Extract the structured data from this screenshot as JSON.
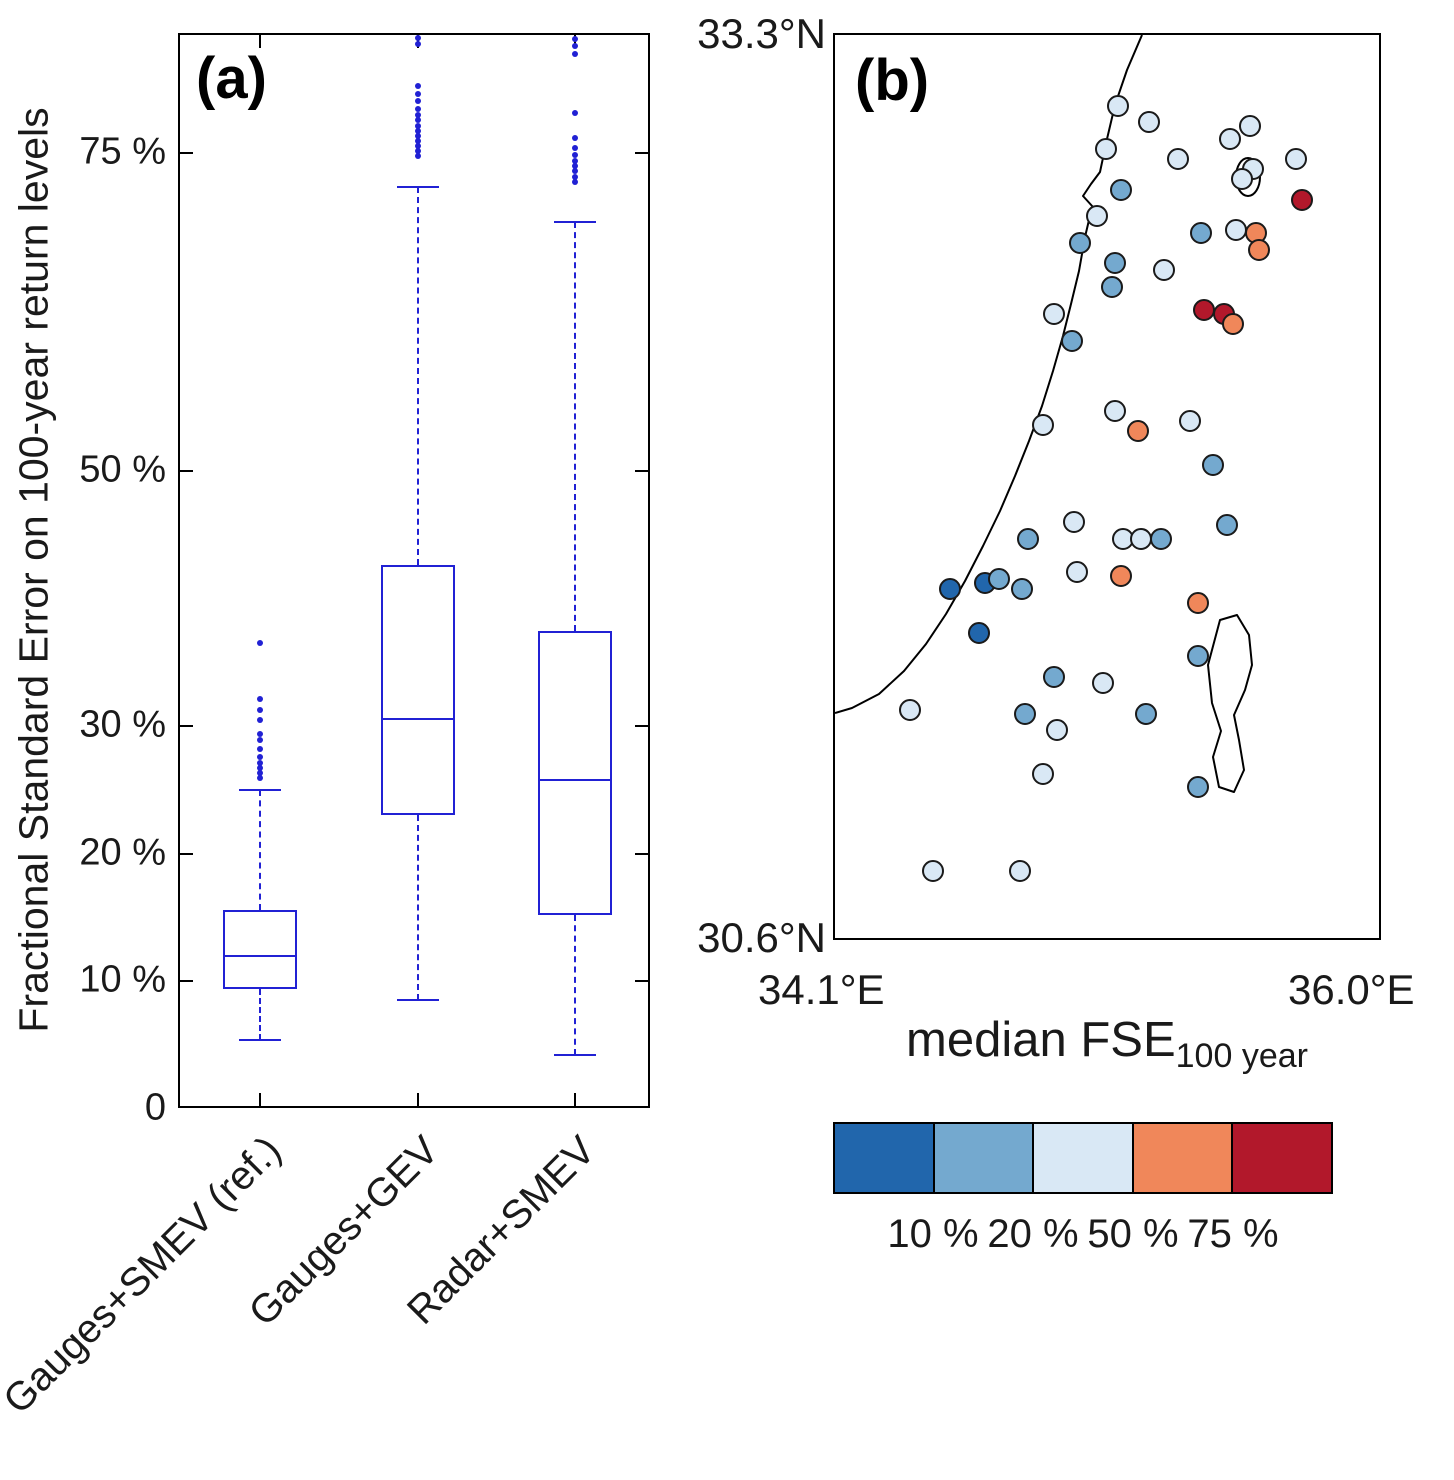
{
  "chart_data": [
    {
      "type": "boxplot",
      "panel_label": "(a)",
      "ylabel": "Fractional Standard Error on 100-year return levels",
      "ylim": [
        0,
        84.3
      ],
      "yticks": [
        0,
        10,
        20,
        30,
        50,
        75
      ],
      "ytick_labels": [
        "0",
        "10 %",
        "20 %",
        "30 %",
        "50 %",
        "75 %"
      ],
      "grid": false,
      "box_color": "#2121d4",
      "categories": [
        "Gauges+SMEV (ref.)",
        "Gauges+GEV",
        "Radar+SMEV"
      ],
      "boxes": [
        {
          "label": "Gauges+SMEV (ref.)",
          "whisker_low": 5.5,
          "q1": 9.5,
          "median": 12.1,
          "q3": 15.7,
          "whisker_high": 25.1,
          "outliers": [
            26,
            26.4,
            26.8,
            27.2,
            27.7,
            28.3,
            29,
            29.5,
            30.6,
            31.4,
            32.2,
            36.6
          ]
        },
        {
          "label": "Gauges+GEV",
          "whisker_low": 8.6,
          "q1": 23.1,
          "median": 30.7,
          "q3": 42.7,
          "whisker_high": 72.4,
          "outliers": [
            74.8,
            75.2,
            75.6,
            76,
            76.4,
            76.8,
            77.2,
            77.6,
            78,
            78.5,
            79.1,
            79.7,
            80.3,
            83.6,
            84.1
          ]
        },
        {
          "label": "Radar+SMEV",
          "whisker_low": 4.3,
          "q1": 15.3,
          "median": 25.9,
          "q3": 37.6,
          "whisker_high": 69.6,
          "outliers": [
            72.8,
            73.2,
            73.6,
            74,
            74.4,
            74.9,
            75.4,
            76.2,
            78.2,
            82.8,
            83.4,
            84
          ]
        }
      ]
    },
    {
      "type": "scatter-map",
      "panel_label": "(b)",
      "lon_range": [
        34.1,
        36.0
      ],
      "lat_range": [
        30.6,
        33.3
      ],
      "corner_labels": {
        "top_left": "33.3°N",
        "bottom_left": "30.6°N",
        "left": "34.1°E",
        "right": "36.0°E"
      },
      "colorbar": {
        "title": "median FSE",
        "title_subscript": "100 year",
        "colors": [
          "#2166ac",
          "#74a9cf",
          "#d9e8f5",
          "#f0875a",
          "#b2182b"
        ],
        "boundary_labels": [
          "10 %",
          "20 %",
          "50 %",
          "75 %"
        ]
      },
      "points": [
        {
          "lon": 35.08,
          "lat": 33.09,
          "bin": 2
        },
        {
          "lon": 35.19,
          "lat": 33.04,
          "bin": 2
        },
        {
          "lon": 35.04,
          "lat": 32.96,
          "bin": 2
        },
        {
          "lon": 35.47,
          "lat": 32.99,
          "bin": 2
        },
        {
          "lon": 35.54,
          "lat": 33.03,
          "bin": 2
        },
        {
          "lon": 35.29,
          "lat": 32.93,
          "bin": 2
        },
        {
          "lon": 35.7,
          "lat": 32.93,
          "bin": 2
        },
        {
          "lon": 35.55,
          "lat": 32.9,
          "bin": 2
        },
        {
          "lon": 35.51,
          "lat": 32.87,
          "bin": 2
        },
        {
          "lon": 35.72,
          "lat": 32.81,
          "bin": 4
        },
        {
          "lon": 35.09,
          "lat": 32.84,
          "bin": 1
        },
        {
          "lon": 35.01,
          "lat": 32.76,
          "bin": 2
        },
        {
          "lon": 35.37,
          "lat": 32.71,
          "bin": 1
        },
        {
          "lon": 35.49,
          "lat": 32.72,
          "bin": 2
        },
        {
          "lon": 35.56,
          "lat": 32.71,
          "bin": 3
        },
        {
          "lon": 35.57,
          "lat": 32.66,
          "bin": 3
        },
        {
          "lon": 34.95,
          "lat": 32.68,
          "bin": 1
        },
        {
          "lon": 35.07,
          "lat": 32.62,
          "bin": 1
        },
        {
          "lon": 35.24,
          "lat": 32.6,
          "bin": 2
        },
        {
          "lon": 35.06,
          "lat": 32.55,
          "bin": 1
        },
        {
          "lon": 35.38,
          "lat": 32.48,
          "bin": 4
        },
        {
          "lon": 35.45,
          "lat": 32.47,
          "bin": 4
        },
        {
          "lon": 35.48,
          "lat": 32.44,
          "bin": 3
        },
        {
          "lon": 34.86,
          "lat": 32.47,
          "bin": 2
        },
        {
          "lon": 34.92,
          "lat": 32.39,
          "bin": 1
        },
        {
          "lon": 34.82,
          "lat": 32.14,
          "bin": 2
        },
        {
          "lon": 35.07,
          "lat": 32.18,
          "bin": 2
        },
        {
          "lon": 35.15,
          "lat": 32.12,
          "bin": 3
        },
        {
          "lon": 35.33,
          "lat": 32.15,
          "bin": 2
        },
        {
          "lon": 35.41,
          "lat": 32.02,
          "bin": 1
        },
        {
          "lon": 34.93,
          "lat": 31.85,
          "bin": 2
        },
        {
          "lon": 34.77,
          "lat": 31.8,
          "bin": 1
        },
        {
          "lon": 35.1,
          "lat": 31.8,
          "bin": 2
        },
        {
          "lon": 35.16,
          "lat": 31.8,
          "bin": 2
        },
        {
          "lon": 35.23,
          "lat": 31.8,
          "bin": 1
        },
        {
          "lon": 35.46,
          "lat": 31.84,
          "bin": 1
        },
        {
          "lon": 34.62,
          "lat": 31.67,
          "bin": 0
        },
        {
          "lon": 34.5,
          "lat": 31.65,
          "bin": 0
        },
        {
          "lon": 34.67,
          "lat": 31.68,
          "bin": 1
        },
        {
          "lon": 34.75,
          "lat": 31.65,
          "bin": 1
        },
        {
          "lon": 34.94,
          "lat": 31.7,
          "bin": 2
        },
        {
          "lon": 35.09,
          "lat": 31.69,
          "bin": 3
        },
        {
          "lon": 35.36,
          "lat": 31.61,
          "bin": 3
        },
        {
          "lon": 34.6,
          "lat": 31.52,
          "bin": 0
        },
        {
          "lon": 35.36,
          "lat": 31.45,
          "bin": 1
        },
        {
          "lon": 34.86,
          "lat": 31.39,
          "bin": 1
        },
        {
          "lon": 35.03,
          "lat": 31.37,
          "bin": 2
        },
        {
          "lon": 35.18,
          "lat": 31.28,
          "bin": 1
        },
        {
          "lon": 34.76,
          "lat": 31.28,
          "bin": 1
        },
        {
          "lon": 34.36,
          "lat": 31.29,
          "bin": 2
        },
        {
          "lon": 34.87,
          "lat": 31.23,
          "bin": 2
        },
        {
          "lon": 34.82,
          "lat": 31.1,
          "bin": 2
        },
        {
          "lon": 35.36,
          "lat": 31.06,
          "bin": 1
        },
        {
          "lon": 34.44,
          "lat": 30.81,
          "bin": 2
        },
        {
          "lon": 34.74,
          "lat": 30.81,
          "bin": 2
        }
      ]
    }
  ]
}
